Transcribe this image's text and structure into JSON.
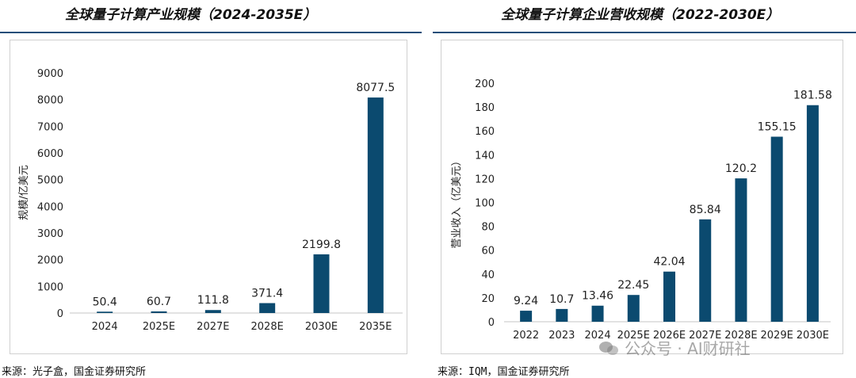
{
  "left": {
    "title": "全球量子计算产业规模（2024-2035E）",
    "source": "来源：光子盒，国金证券研究所"
  },
  "right": {
    "title": "全球量子计算企业营收规模（2022-2030E）",
    "source": "来源：IQM，国金证券研究所"
  },
  "watermark": "公众号 · AI财研社",
  "colors": {
    "bar": "#0b4a6f",
    "axis": "#d9d9d9",
    "rule": "#1f4e79"
  },
  "chart_data": [
    {
      "type": "bar",
      "title": "全球量子计算产业规模（2024-2035E）",
      "xlabel": "",
      "ylabel": "规模/亿美元",
      "categories": [
        "2024",
        "2025E",
        "2027E",
        "2028E",
        "2030E",
        "2035E"
      ],
      "values": [
        50.4,
        60.7,
        111.8,
        371.4,
        2199.8,
        8077.5
      ],
      "data_labels": [
        "50.4",
        "60.7",
        "111.8",
        "371.4",
        "2199.8",
        "8077.5"
      ],
      "ylim": [
        0,
        9000
      ],
      "yticks": [
        0,
        1000,
        2000,
        3000,
        4000,
        5000,
        6000,
        7000,
        8000,
        9000
      ],
      "grid": false
    },
    {
      "type": "bar",
      "title": "全球量子计算企业营收规模（2022-2030E）",
      "xlabel": "",
      "ylabel": "营业收入（亿美元）",
      "categories": [
        "2022",
        "2023",
        "2024",
        "2025E",
        "2026E",
        "2027E",
        "2028E",
        "2029E",
        "2030E"
      ],
      "values": [
        9.24,
        10.7,
        13.46,
        22.45,
        42.04,
        85.84,
        120.2,
        155.15,
        181.58
      ],
      "data_labels": [
        "9.24",
        "10.7",
        "13.46",
        "22.45",
        "42.04",
        "85.84",
        "120.2",
        "155.15",
        "181.58"
      ],
      "ylim": [
        0,
        200
      ],
      "yticks": [
        0,
        20,
        40,
        60,
        80,
        100,
        120,
        140,
        160,
        180,
        200
      ],
      "grid": false
    }
  ]
}
